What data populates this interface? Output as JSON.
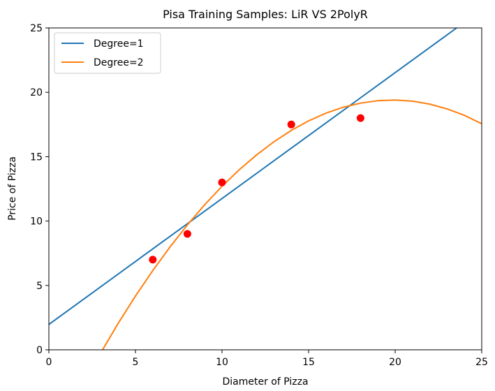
{
  "chart_data": {
    "type": "line",
    "title": "Pisa Training Samples: LiR VS 2PolyR",
    "xlabel": "Diameter of Pizza",
    "ylabel": "Price of Pizza",
    "xlim": [
      0,
      25
    ],
    "ylim": [
      0,
      25
    ],
    "xticks": [
      0,
      5,
      10,
      15,
      20,
      25
    ],
    "yticks": [
      0,
      5,
      10,
      15,
      20,
      25
    ],
    "grid": false,
    "legend_position": "top-left",
    "scatter": {
      "color": "#ff0000",
      "points": [
        {
          "x": 6,
          "y": 7
        },
        {
          "x": 8,
          "y": 9
        },
        {
          "x": 10,
          "y": 13
        },
        {
          "x": 14,
          "y": 17.5
        },
        {
          "x": 18,
          "y": 18
        }
      ]
    },
    "series": [
      {
        "name": "Degree=1",
        "color": "#1f77b4",
        "x": [
          0,
          23.55
        ],
        "y": [
          1.97,
          25
        ]
      },
      {
        "name": "Degree=2",
        "color": "#ff7f0e",
        "x": [
          3.1,
          4,
          5,
          6,
          7,
          8,
          9,
          10,
          11,
          12,
          13,
          14,
          15,
          16,
          17,
          18,
          19,
          20,
          21,
          22,
          23,
          24,
          25
        ],
        "y": [
          0.0,
          2.05,
          4.17,
          6.15,
          7.99,
          9.7,
          11.27,
          12.7,
          13.99,
          15.14,
          16.16,
          17.04,
          17.78,
          18.38,
          18.84,
          19.16,
          19.35,
          19.4,
          19.31,
          19.08,
          18.71,
          18.21,
          17.56
        ]
      }
    ]
  }
}
